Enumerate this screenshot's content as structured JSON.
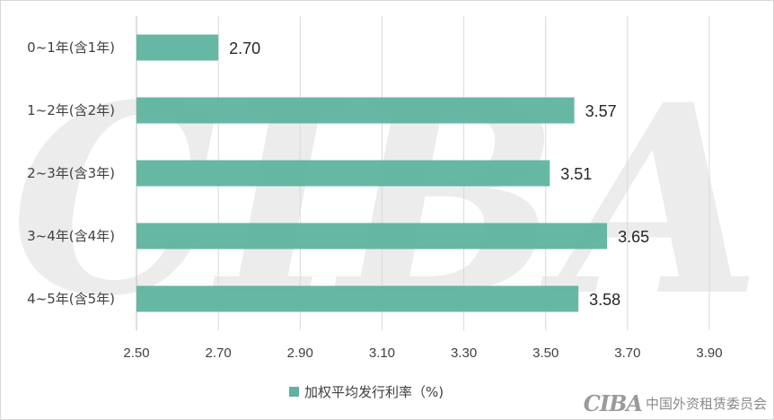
{
  "chart_data": {
    "type": "bar",
    "orientation": "horizontal",
    "categories": [
      "0~1年(含1年)",
      "1~2年(含2年)",
      "2~3年(含3年)",
      "3~4年(含4年)",
      "4~5年(含5年)"
    ],
    "series": [
      {
        "name": "加权平均发行利率（%)",
        "values": [
          2.7,
          3.57,
          3.51,
          3.65,
          3.58
        ],
        "color": "#5fb3a0"
      }
    ],
    "data_labels": [
      "2.70",
      "3.57",
      "3.51",
      "3.65",
      "3.58"
    ],
    "x_ticks": [
      "2.50",
      "2.70",
      "2.90",
      "3.10",
      "3.30",
      "3.50",
      "3.70",
      "3.90"
    ],
    "xlim": [
      2.5,
      3.9
    ],
    "grid": "vertical",
    "legend_position": "bottom"
  },
  "watermark": {
    "text": "CIBA",
    "color": "#ececec"
  },
  "logo": {
    "mark": "CIBA",
    "text": "中国外资租赁委员会"
  }
}
